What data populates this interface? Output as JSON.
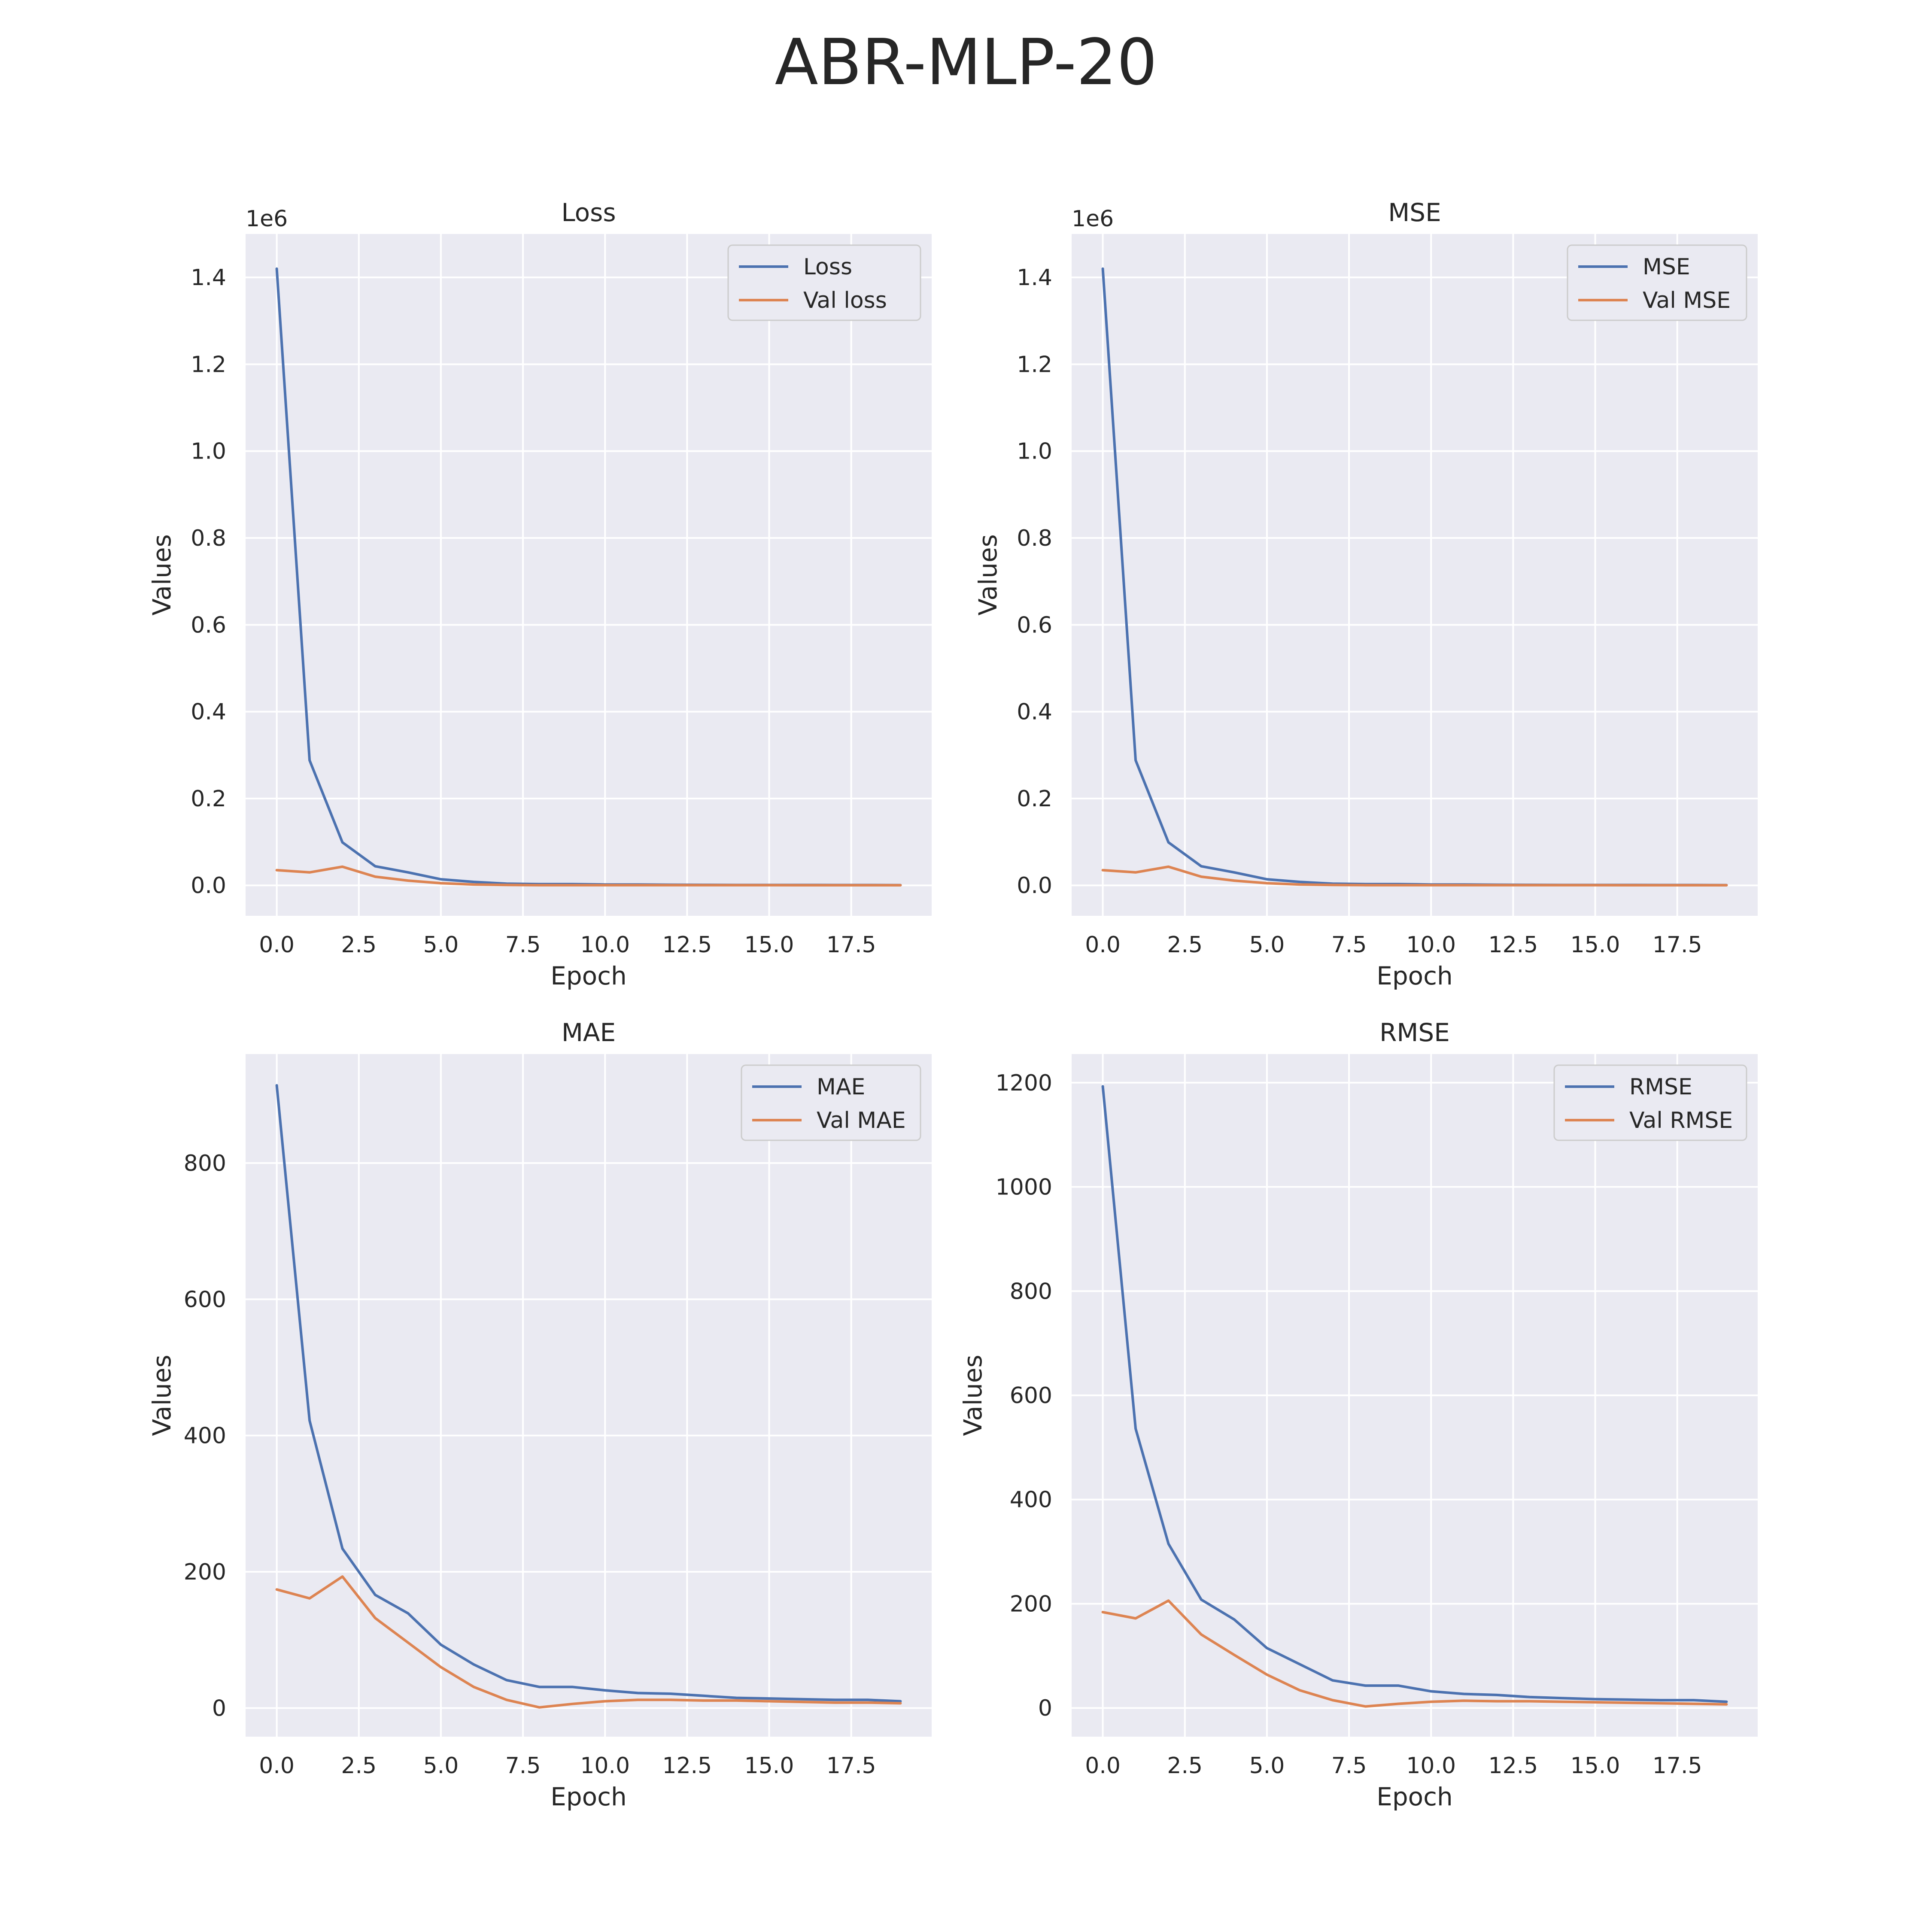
{
  "figure_title": "ABR-MLP-20",
  "colors": {
    "train": "#4c72b0",
    "val": "#dd8452",
    "plot_bg": "#eaeaf2",
    "grid": "#ffffff"
  },
  "chart_data": [
    {
      "type": "line",
      "title": "Loss",
      "xlabel": "Epoch",
      "ylabel": "Values",
      "offset_label": "1e6",
      "xlim": [
        -0.95,
        19.95
      ],
      "ylim": [
        -0.07,
        1.5
      ],
      "xticks": [
        0,
        2.5,
        5,
        7.5,
        10,
        12.5,
        15,
        17.5
      ],
      "xtick_labels": [
        "0.0",
        "2.5",
        "5.0",
        "7.5",
        "10.0",
        "12.5",
        "15.0",
        "17.5"
      ],
      "yticks": [
        0,
        0.2,
        0.4,
        0.6,
        0.8,
        1.0,
        1.2,
        1.4
      ],
      "ytick_labels": [
        "0.0",
        "0.2",
        "0.4",
        "0.6",
        "0.8",
        "1.0",
        "1.2",
        "1.4"
      ],
      "legend_position": "top-right",
      "x": [
        0,
        1,
        2,
        3,
        4,
        5,
        6,
        7,
        8,
        9,
        10,
        11,
        12,
        13,
        14,
        15,
        16,
        17,
        18,
        19
      ],
      "series": [
        {
          "name": "Loss",
          "color": "#4c72b0",
          "values": [
            1.42,
            0.288,
            0.099,
            0.044,
            0.03,
            0.014,
            0.008,
            0.004,
            0.003,
            0.003,
            0.002,
            0.002,
            0.0015,
            0.0012,
            0.001,
            0.001,
            0.001,
            0.0008,
            0.0008,
            0.0006
          ]
        },
        {
          "name": "Val loss",
          "color": "#dd8452",
          "values": [
            0.035,
            0.03,
            0.043,
            0.02,
            0.011,
            0.005,
            0.002,
            0.001,
            0.0005,
            0.0005,
            0.0005,
            0.0005,
            0.0005,
            0.0004,
            0.0004,
            0.0004,
            0.0003,
            0.0003,
            0.0003,
            0.0003
          ]
        }
      ]
    },
    {
      "type": "line",
      "title": "MSE",
      "xlabel": "Epoch",
      "ylabel": "Values",
      "offset_label": "1e6",
      "xlim": [
        -0.95,
        19.95
      ],
      "ylim": [
        -0.07,
        1.5
      ],
      "xticks": [
        0,
        2.5,
        5,
        7.5,
        10,
        12.5,
        15,
        17.5
      ],
      "xtick_labels": [
        "0.0",
        "2.5",
        "5.0",
        "7.5",
        "10.0",
        "12.5",
        "15.0",
        "17.5"
      ],
      "yticks": [
        0,
        0.2,
        0.4,
        0.6,
        0.8,
        1.0,
        1.2,
        1.4
      ],
      "ytick_labels": [
        "0.0",
        "0.2",
        "0.4",
        "0.6",
        "0.8",
        "1.0",
        "1.2",
        "1.4"
      ],
      "legend_position": "top-right",
      "x": [
        0,
        1,
        2,
        3,
        4,
        5,
        6,
        7,
        8,
        9,
        10,
        11,
        12,
        13,
        14,
        15,
        16,
        17,
        18,
        19
      ],
      "series": [
        {
          "name": "MSE",
          "color": "#4c72b0",
          "values": [
            1.42,
            0.288,
            0.099,
            0.044,
            0.03,
            0.014,
            0.008,
            0.004,
            0.003,
            0.003,
            0.002,
            0.002,
            0.0015,
            0.0012,
            0.001,
            0.001,
            0.001,
            0.0008,
            0.0008,
            0.0006
          ]
        },
        {
          "name": "Val MSE",
          "color": "#dd8452",
          "values": [
            0.035,
            0.03,
            0.043,
            0.02,
            0.011,
            0.005,
            0.002,
            0.001,
            0.0005,
            0.0005,
            0.0005,
            0.0005,
            0.0005,
            0.0004,
            0.0004,
            0.0004,
            0.0003,
            0.0003,
            0.0003,
            0.0003
          ]
        }
      ]
    },
    {
      "type": "line",
      "title": "MAE",
      "xlabel": "Epoch",
      "ylabel": "Values",
      "offset_label": "",
      "xlim": [
        -0.95,
        19.95
      ],
      "ylim": [
        -42,
        960
      ],
      "xticks": [
        0,
        2.5,
        5,
        7.5,
        10,
        12.5,
        15,
        17.5
      ],
      "xtick_labels": [
        "0.0",
        "2.5",
        "5.0",
        "7.5",
        "10.0",
        "12.5",
        "15.0",
        "17.5"
      ],
      "yticks": [
        0,
        200,
        400,
        600,
        800
      ],
      "ytick_labels": [
        "0",
        "200",
        "400",
        "600",
        "800"
      ],
      "legend_position": "top-right",
      "x": [
        0,
        1,
        2,
        3,
        4,
        5,
        6,
        7,
        8,
        9,
        10,
        11,
        12,
        13,
        14,
        15,
        16,
        17,
        18,
        19
      ],
      "series": [
        {
          "name": "MAE",
          "color": "#4c72b0",
          "values": [
            914,
            422,
            234,
            166,
            139,
            93,
            64,
            41,
            31,
            31,
            26,
            22,
            21,
            18,
            15,
            14,
            13,
            12,
            12,
            10
          ]
        },
        {
          "name": "Val MAE",
          "color": "#dd8452",
          "values": [
            174,
            161,
            193,
            132,
            96,
            60,
            31,
            12,
            1,
            6,
            10,
            12,
            12,
            11,
            11,
            10,
            9,
            8,
            8,
            7
          ]
        }
      ]
    },
    {
      "type": "line",
      "title": "RMSE",
      "xlabel": "Epoch",
      "ylabel": "Values",
      "offset_label": "",
      "xlim": [
        -0.95,
        19.95
      ],
      "ylim": [
        -55,
        1255
      ],
      "xticks": [
        0,
        2.5,
        5,
        7.5,
        10,
        12.5,
        15,
        17.5
      ],
      "xtick_labels": [
        "0.0",
        "2.5",
        "5.0",
        "7.5",
        "10.0",
        "12.5",
        "15.0",
        "17.5"
      ],
      "yticks": [
        0,
        200,
        400,
        600,
        800,
        1000,
        1200
      ],
      "ytick_labels": [
        "0",
        "200",
        "400",
        "600",
        "800",
        "1000",
        "1200"
      ],
      "legend_position": "top-right",
      "x": [
        0,
        1,
        2,
        3,
        4,
        5,
        6,
        7,
        8,
        9,
        10,
        11,
        12,
        13,
        14,
        15,
        16,
        17,
        18,
        19
      ],
      "series": [
        {
          "name": "RMSE",
          "color": "#4c72b0",
          "values": [
            1193,
            536,
            315,
            208,
            170,
            115,
            84,
            53,
            43,
            43,
            32,
            27,
            25,
            21,
            19,
            17,
            16,
            15,
            15,
            12
          ]
        },
        {
          "name": "Val RMSE",
          "color": "#dd8452",
          "values": [
            184,
            172,
            206,
            141,
            102,
            64,
            34,
            15,
            3,
            8,
            12,
            14,
            13,
            13,
            12,
            11,
            10,
            9,
            8,
            7
          ]
        }
      ]
    }
  ]
}
